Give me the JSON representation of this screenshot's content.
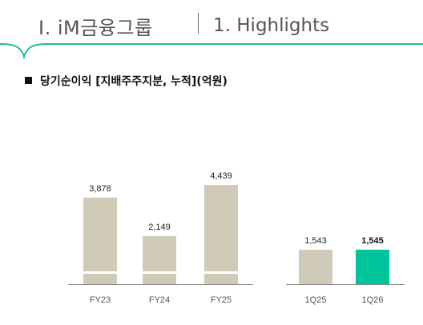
{
  "header": {
    "title": "Ⅰ. iM금융그룹",
    "subtitle": "1. Highlights",
    "accent_color": "#26B99A"
  },
  "section": {
    "title": "당기순이익 [지배주주지분, 누적](억원)"
  },
  "chart_data": [
    {
      "type": "bar",
      "categories": [
        "FY23",
        "FY24",
        "FY25"
      ],
      "values": [
        3878,
        2149,
        4439
      ],
      "data_labels": [
        "3,878",
        "2,149",
        "4,439"
      ],
      "colors": [
        "#CFCBB8",
        "#CFCBB8",
        "#CFCBB8"
      ],
      "axis_break": true,
      "title": "",
      "xlabel": "",
      "ylabel": "",
      "grid": false,
      "legend": "none"
    },
    {
      "type": "bar",
      "categories": [
        "1Q25",
        "1Q26"
      ],
      "values": [
        1543,
        1545
      ],
      "data_labels": [
        "1,543",
        "1,545"
      ],
      "highlight": [
        false,
        true
      ],
      "colors": [
        "#CFCBB8",
        "#00C49A"
      ],
      "axis_break": false,
      "title": "",
      "xlabel": "",
      "ylabel": "",
      "grid": false,
      "legend": "none"
    }
  ]
}
